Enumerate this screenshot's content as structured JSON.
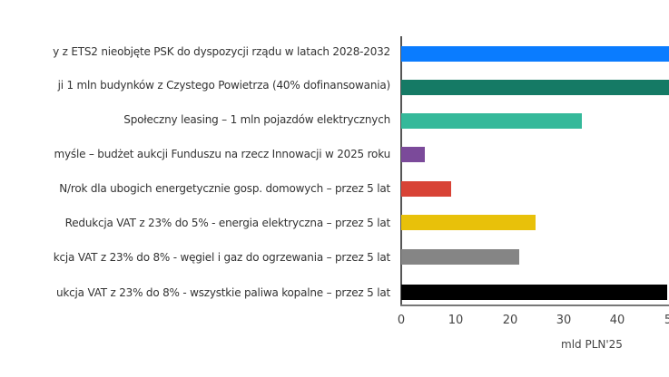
{
  "chart_data": {
    "type": "bar",
    "orientation": "horizontal",
    "title": "",
    "xlabel": "mld PLN'25",
    "ylabel": "",
    "xlim": [
      0,
      50
    ],
    "x_ticks": [
      "0",
      "10",
      "20",
      "30",
      "40",
      "5"
    ],
    "grid": false,
    "legend": null,
    "categories": [
      "y z ETS2 nieobjęte PSK do dyspozycji rządu w latach 2028-2032",
      "ji 1 mln budynków z Czystego Powietrza (40% dofinansowania)",
      "Społeczny leasing – 1 mln pojazdów elektrycznych",
      "myśle – budżet aukcji Funduszu na rzecz Innowacji w 2025 roku",
      "N/rok dla ubogich energetycznie gosp. domowych – przez 5 lat",
      "Redukcja VAT z 23% do 5% - energia elektryczna – przez 5 lat",
      "kcja VAT z 23% do 8% - węgiel i gaz do ogrzewania – przez 5 lat",
      "ukcja VAT z 23% do 8% - wszystkie paliwa kopalne – przez 5 lat"
    ],
    "values": [
      50,
      50,
      33.5,
      4.3,
      9.3,
      24.8,
      21.8,
      49.2
    ],
    "values_note": "first two bars extend beyond visible area (>50)",
    "colors": [
      "#0a7cff",
      "#157a65",
      "#35b99a",
      "#7b4a9a",
      "#d84336",
      "#e8c10a",
      "#858585",
      "#000000"
    ]
  },
  "bars": [
    {
      "label": "y z ETS2 nieobjęte PSK do dyspozycji rządu w latach 2028-2032",
      "value": 50,
      "color": "#0a7cff"
    },
    {
      "label": "ji 1 mln budynków z Czystego Powietrza (40% dofinansowania)",
      "value": 50,
      "color": "#157a65"
    },
    {
      "label": "Społeczny leasing – 1 mln pojazdów elektrycznych",
      "value": 33.5,
      "color": "#35b99a"
    },
    {
      "label": "myśle – budżet aukcji Funduszu na rzecz Innowacji w 2025 roku",
      "value": 4.3,
      "color": "#7b4a9a"
    },
    {
      "label": "N/rok dla ubogich energetycznie gosp. domowych – przez 5 lat",
      "value": 9.3,
      "color": "#d84336"
    },
    {
      "label": "Redukcja VAT z 23% do 5% - energia elektryczna – przez 5 lat",
      "value": 24.8,
      "color": "#e8c10a"
    },
    {
      "label": "kcja VAT z 23% do 8% - węgiel i gaz do ogrzewania – przez 5 lat",
      "value": 21.8,
      "color": "#858585"
    },
    {
      "label": "ukcja VAT z 23% do 8% - wszystkie paliwa kopalne – przez 5 lat",
      "value": 49.2,
      "color": "#000000"
    }
  ],
  "axis": {
    "ticks": [
      "0",
      "10",
      "20",
      "30",
      "40",
      "5"
    ],
    "xlabel": "mld PLN'25"
  }
}
